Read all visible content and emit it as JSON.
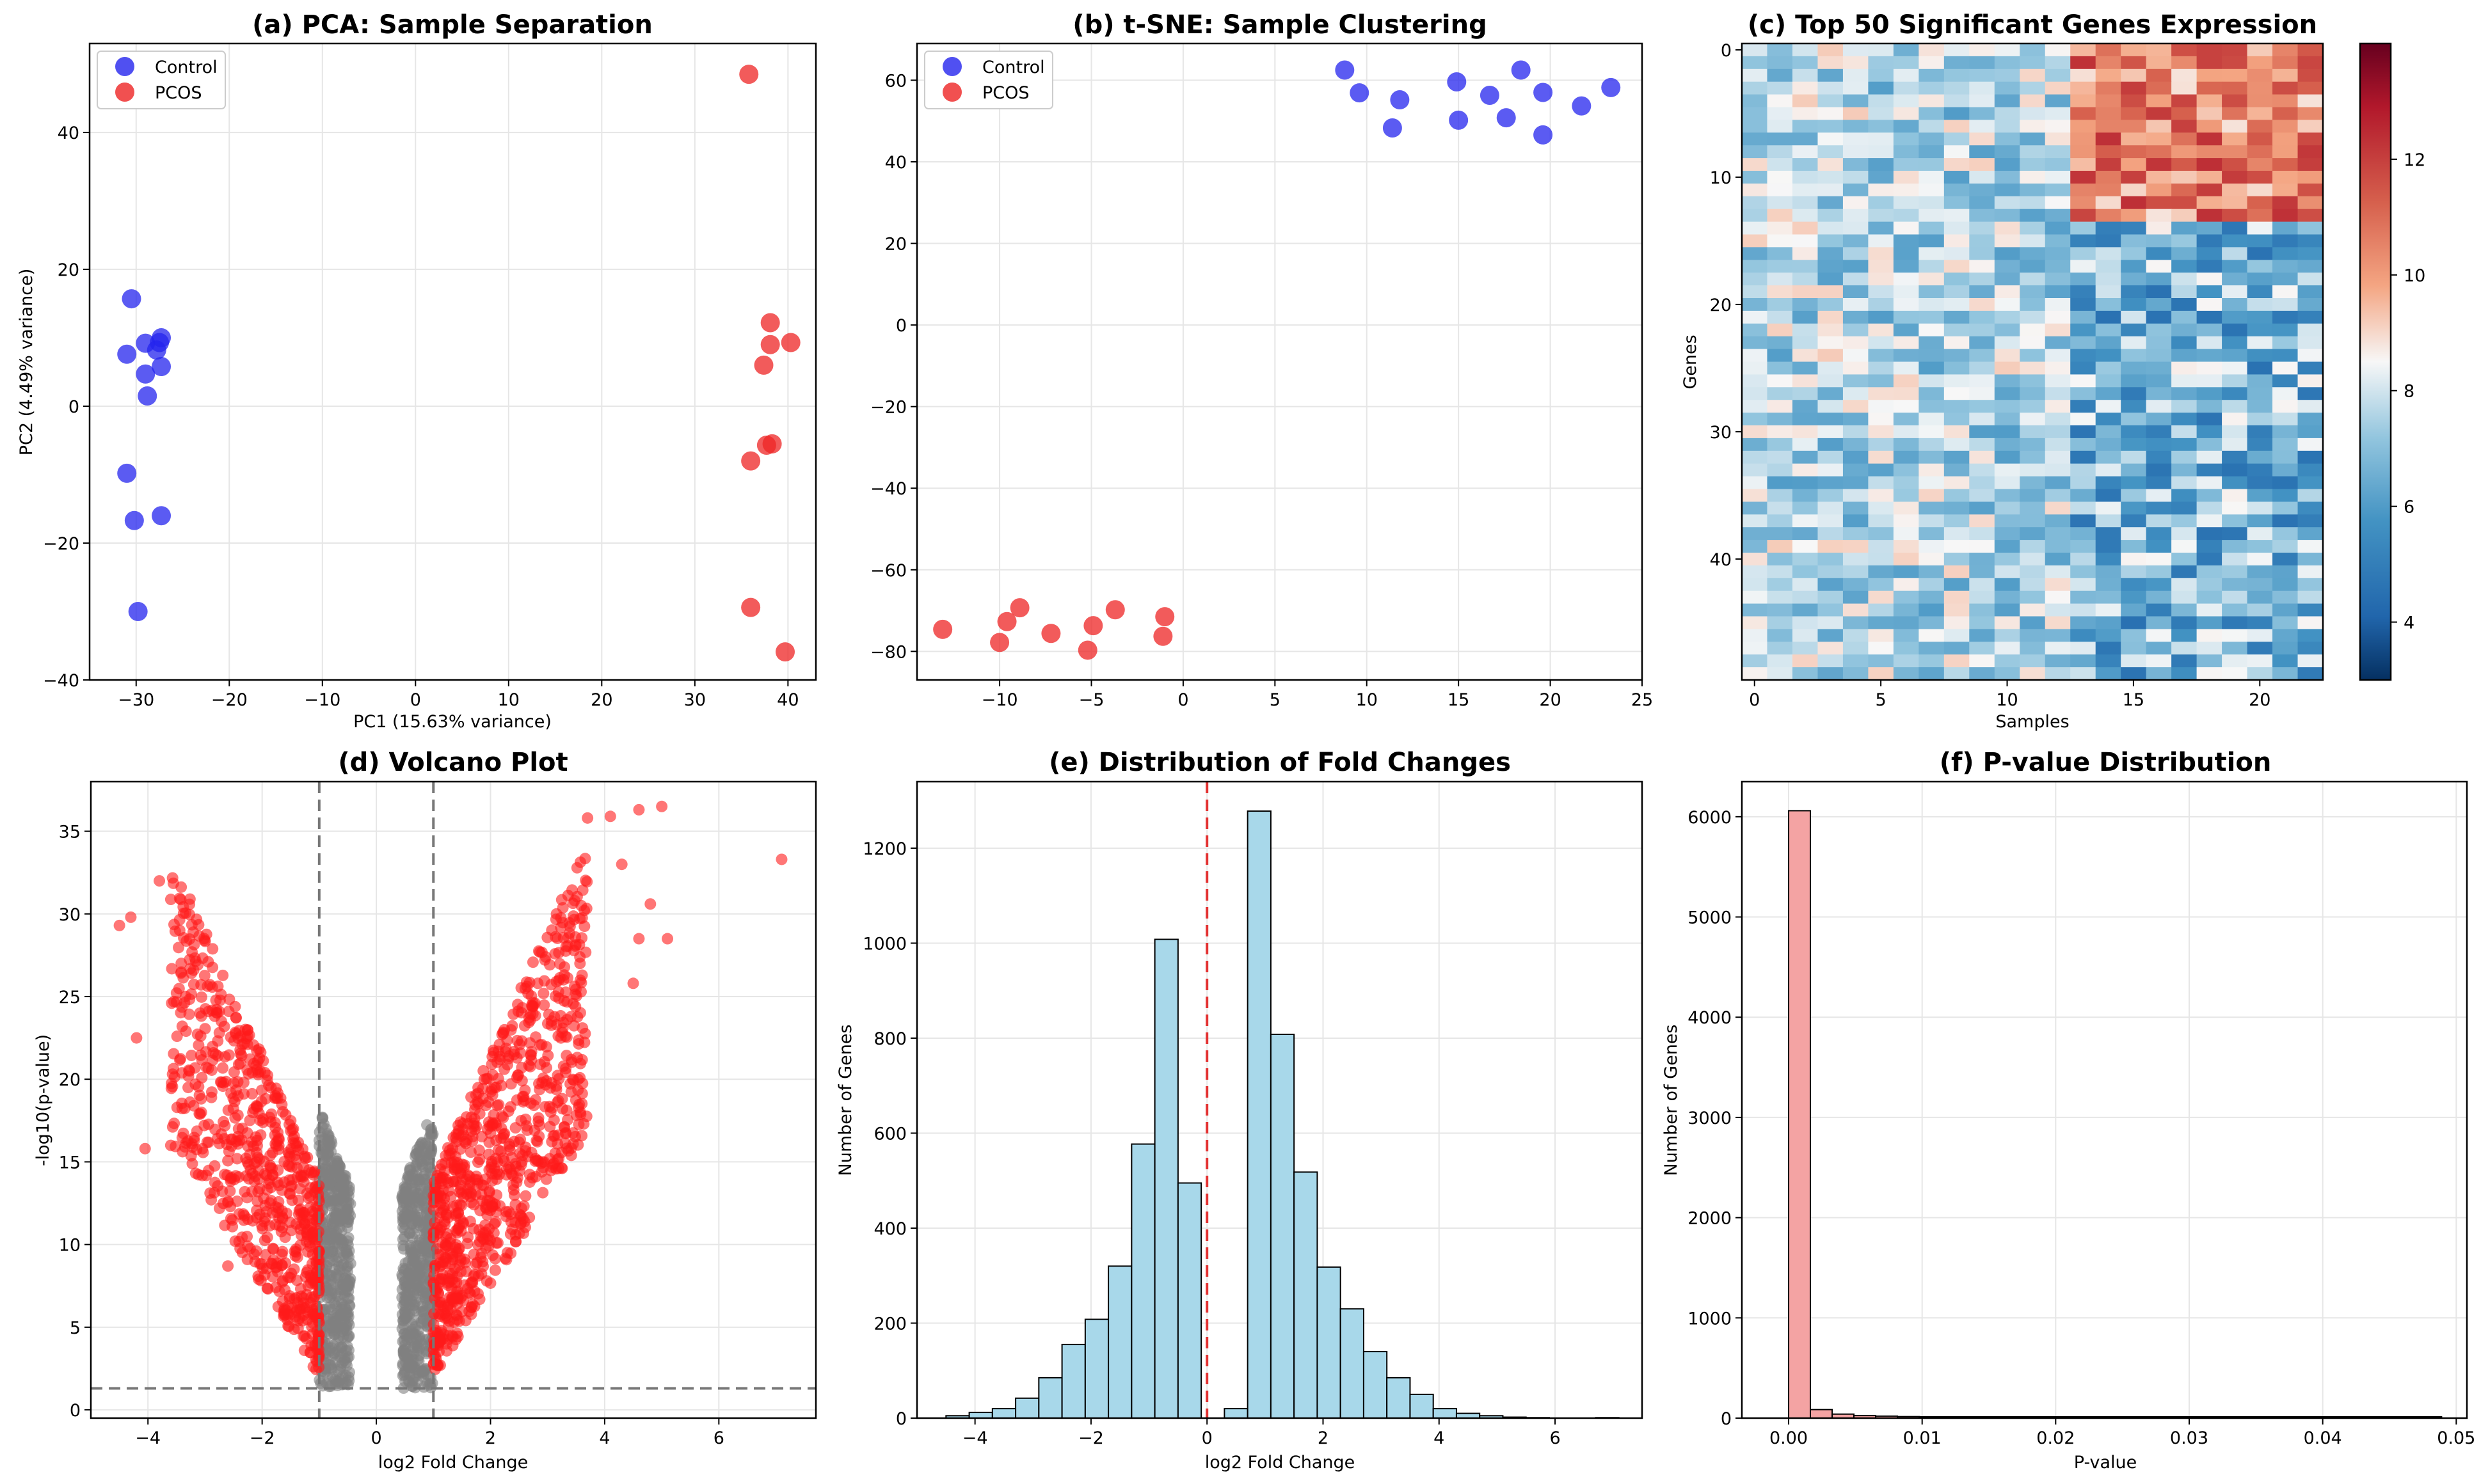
{
  "colors": {
    "control": "#2424ee",
    "pcos": "#ee2424",
    "volcano_sig": "#ff1a1a",
    "volcano_ns": "#808080",
    "hist_fc": "#a8d8ea",
    "hist_p": "#f4a3a3",
    "ref_red": "#e33333",
    "ref_gray": "#777777"
  },
  "chart_data": [
    {
      "id": "pca",
      "type": "scatter",
      "title": "(a) PCA: Sample Separation",
      "xlabel": "PC1 (15.63% variance)",
      "ylabel": "PC2 (4.49% variance)",
      "xlim": [
        -35,
        43
      ],
      "ylim": [
        -40,
        53
      ],
      "xticks": [
        -30,
        -20,
        -10,
        0,
        10,
        20,
        30,
        40
      ],
      "yticks": [
        -40,
        -20,
        0,
        20,
        40
      ],
      "legend": [
        "Control",
        "PCOS"
      ],
      "legend_position": "top-left",
      "series": [
        {
          "name": "Control",
          "points": [
            [
              -30.5,
              15.7
            ],
            [
              -31,
              7.6
            ],
            [
              -29,
              9.2
            ],
            [
              -27.8,
              8.2
            ],
            [
              -27.3,
              10
            ],
            [
              -27.5,
              9.3
            ],
            [
              -29,
              4.7
            ],
            [
              -27.3,
              5.8
            ],
            [
              -28.8,
              1.5
            ],
            [
              -31,
              -9.8
            ],
            [
              -30.2,
              -16.7
            ],
            [
              -27.3,
              -16
            ],
            [
              -29.8,
              -30
            ]
          ]
        },
        {
          "name": "PCOS",
          "points": [
            [
              35.8,
              48.5
            ],
            [
              38.1,
              12.2
            ],
            [
              38.1,
              9
            ],
            [
              40.3,
              9.3
            ],
            [
              37.4,
              6
            ],
            [
              37.7,
              -5.7
            ],
            [
              38.3,
              -5.5
            ],
            [
              36,
              -8
            ],
            [
              36,
              -29.4
            ],
            [
              39.7,
              -35.9
            ]
          ]
        }
      ]
    },
    {
      "id": "tsne",
      "type": "scatter",
      "title": "(b) t-SNE: Sample Clustering",
      "xlabel": "",
      "ylabel": "",
      "xlim": [
        -14.5,
        25
      ],
      "ylim": [
        -87,
        69
      ],
      "xticks": [
        -10,
        -5,
        0,
        5,
        10,
        15,
        20,
        25
      ],
      "yticks": [
        -80,
        -60,
        -40,
        -20,
        0,
        20,
        40,
        60
      ],
      "legend": [
        "Control",
        "PCOS"
      ],
      "legend_position": "top-left",
      "series": [
        {
          "name": "Control",
          "points": [
            [
              8.8,
              62.5
            ],
            [
              9.6,
              56.9
            ],
            [
              11.4,
              48.3
            ],
            [
              11.8,
              55.2
            ],
            [
              14.9,
              59.6
            ],
            [
              15,
              50.2
            ],
            [
              16.7,
              56.3
            ],
            [
              17.6,
              50.8
            ],
            [
              18.4,
              62.5
            ],
            [
              19.6,
              57
            ],
            [
              19.6,
              46.6
            ],
            [
              21.7,
              53.7
            ],
            [
              23.3,
              58.2
            ]
          ]
        },
        {
          "name": "PCOS",
          "points": [
            [
              -13.1,
              -74.6
            ],
            [
              -10,
              -77.8
            ],
            [
              -9.6,
              -72.7
            ],
            [
              -8.9,
              -69.3
            ],
            [
              -7.2,
              -75.6
            ],
            [
              -5.2,
              -79.7
            ],
            [
              -4.9,
              -73.7
            ],
            [
              -3.7,
              -69.8
            ],
            [
              -1,
              -71.5
            ],
            [
              -1.1,
              -76.3
            ]
          ]
        }
      ]
    },
    {
      "id": "heatmap",
      "type": "heatmap",
      "title": "(c) Top 50 Significant Genes Expression",
      "xlabel": "Samples",
      "ylabel": "Genes",
      "rows": 50,
      "cols": 23,
      "xticks": [
        0,
        5,
        10,
        15,
        20
      ],
      "yticks": [
        0,
        10,
        20,
        30,
        40
      ],
      "colorbar_range": [
        3,
        14
      ],
      "colorbar_ticks": [
        4,
        6,
        8,
        10,
        12
      ],
      "group_split": 12,
      "pattern": "samples 0-12 mostly near 7 (light blue); genes 0-13 increase to 10-13 in samples 13-22; genes 14-49 decrease to 4-6 in samples 13-22"
    },
    {
      "id": "volcano",
      "type": "scatter",
      "title": "(d) Volcano Plot",
      "xlabel": "log2 Fold Change",
      "ylabel": "-log10(p-value)",
      "xlim": [
        -5,
        7.7
      ],
      "ylim": [
        -0.5,
        38
      ],
      "xticks": [
        -4,
        -2,
        0,
        2,
        4,
        6
      ],
      "yticks": [
        0,
        5,
        10,
        15,
        20,
        25,
        30,
        35
      ],
      "thresholds": {
        "fold_change": [
          -1,
          1
        ],
        "neg_log10_p": 1.3
      },
      "outliers": [
        [
          -4.3,
          29.8
        ],
        [
          -4.5,
          29.3
        ],
        [
          -3.8,
          32
        ],
        [
          -4.2,
          22.5
        ],
        [
          -4.05,
          15.8
        ],
        [
          -3.2,
          26.6
        ],
        [
          -3.6,
          16
        ],
        [
          -2.6,
          8.7
        ],
        [
          3.7,
          35.8
        ],
        [
          4.1,
          35.9
        ],
        [
          4.6,
          36.3
        ],
        [
          5,
          36.5
        ],
        [
          4.3,
          33
        ],
        [
          4.5,
          25.8
        ],
        [
          4.6,
          28.5
        ],
        [
          7.1,
          33.3
        ],
        [
          5.1,
          28.5
        ],
        [
          4.8,
          30.6
        ]
      ]
    },
    {
      "id": "fc_hist",
      "type": "bar",
      "title": "(e) Distribution of Fold Changes",
      "xlabel": "log2 Fold Change",
      "ylabel": "Number of Genes",
      "xlim": [
        -5,
        7.5
      ],
      "ylim": [
        0,
        1340
      ],
      "xticks": [
        -4,
        -2,
        0,
        2,
        4,
        6
      ],
      "yticks": [
        0,
        200,
        400,
        600,
        800,
        1000,
        1200
      ],
      "bin_start": -4.5,
      "bin_width": 0.4,
      "values": [
        5,
        12,
        20,
        42,
        85,
        155,
        208,
        320,
        577,
        1008,
        495,
        0,
        20,
        1278,
        808,
        518,
        318,
        230,
        140,
        85,
        50,
        20,
        10,
        5,
        2,
        1,
        0,
        0,
        1
      ],
      "reference_line": 0
    },
    {
      "id": "p_hist",
      "type": "bar",
      "title": "(f) P-value Distribution",
      "xlabel": "P-value",
      "ylabel": "Number of Genes",
      "xlim": [
        -0.0035,
        0.0508
      ],
      "ylim": [
        0,
        6350
      ],
      "xticks": [
        0.0,
        0.01,
        0.02,
        0.03,
        0.04,
        0.05
      ],
      "xtick_labels": [
        "0.00",
        "0.01",
        "0.02",
        "0.03",
        "0.04",
        "0.05"
      ],
      "yticks": [
        0,
        1000,
        2000,
        3000,
        4000,
        5000,
        6000
      ],
      "bin_start": 0,
      "bin_width": 0.00163,
      "values": [
        6060,
        85,
        40,
        25,
        20,
        15,
        12,
        10,
        8,
        8,
        7,
        6,
        6,
        5,
        5,
        4,
        4,
        4,
        3,
        3,
        3,
        3,
        2,
        2,
        2,
        2,
        2,
        2,
        2,
        2
      ]
    }
  ]
}
